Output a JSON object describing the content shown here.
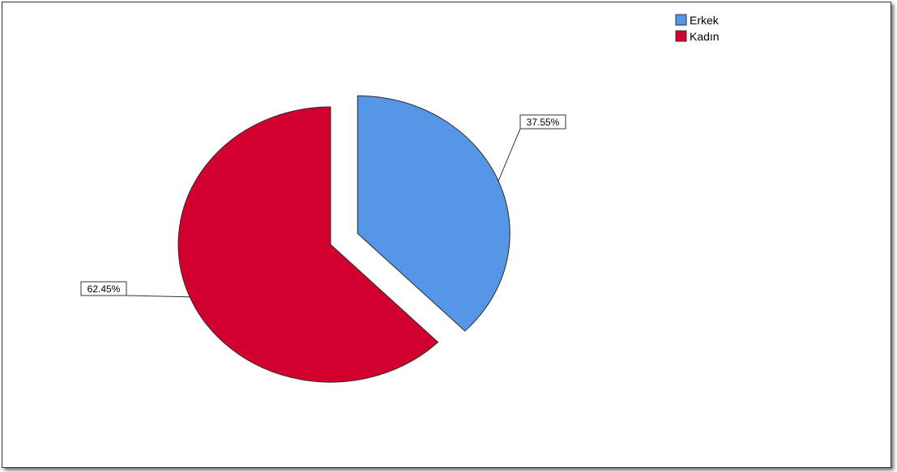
{
  "chart_data": {
    "type": "pie",
    "categories": [
      "Erkek",
      "Kadın"
    ],
    "values": [
      37.55,
      62.45
    ],
    "labels": [
      "37.55%",
      "62.45%"
    ],
    "colors": [
      "#5596e6",
      "#d2002e"
    ],
    "exploded": [
      true,
      false
    ],
    "legend": {
      "position": "top-right",
      "entries": [
        "Erkek",
        "Kadın"
      ]
    }
  }
}
